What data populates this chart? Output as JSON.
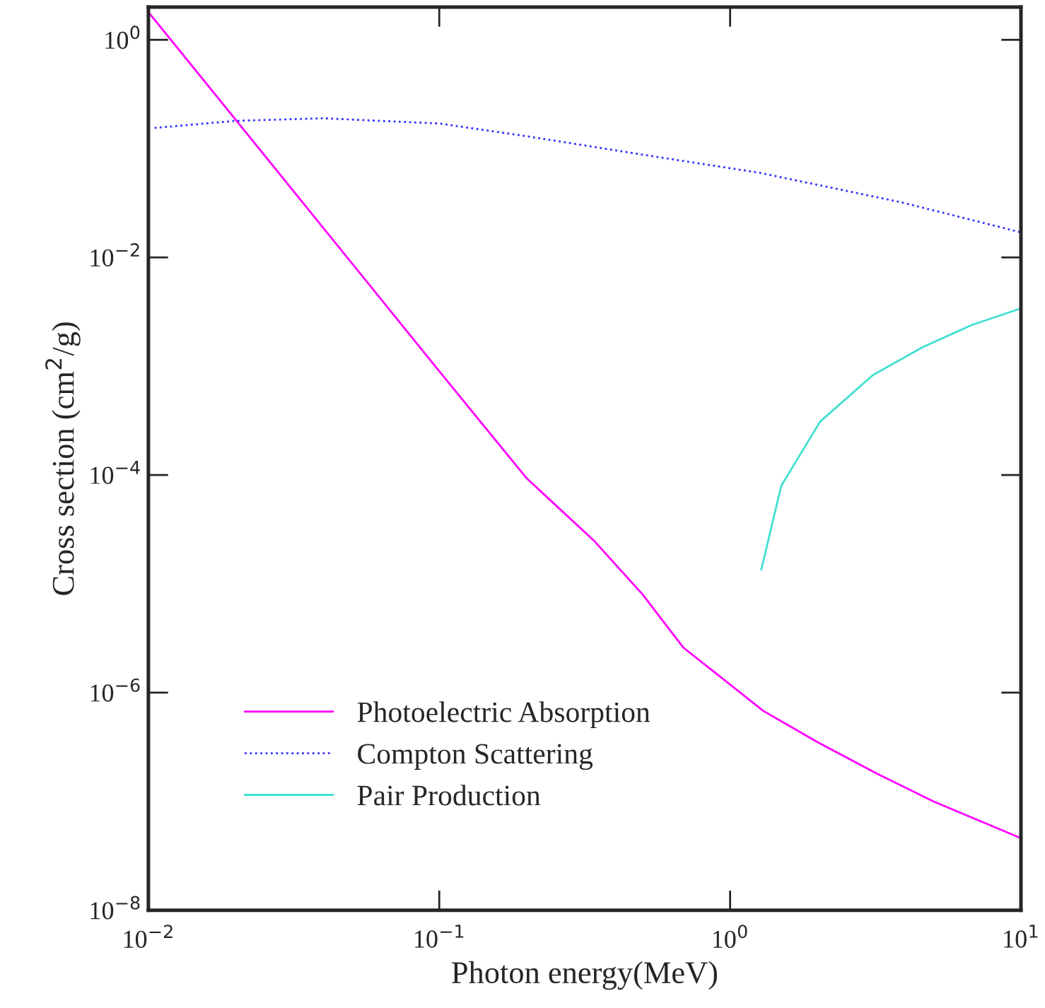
{
  "chart_data": {
    "type": "line",
    "xlabel": "Photon energy(MeV)",
    "ylabel": "Cross section (cm$^{2}$/g)",
    "log": "xy",
    "xlim": [
      0.01,
      10
    ],
    "ylim": [
      1e-08,
      2
    ],
    "xticks": [
      {
        "value": 0.01,
        "label": "10$^{−2}$"
      },
      {
        "value": 0.1,
        "label": "10$^{−1}$"
      },
      {
        "value": 1,
        "label": "10$^{0}$"
      },
      {
        "value": 10,
        "label": "10$^{1}$"
      }
    ],
    "yticks": [
      {
        "value": 1e-08,
        "label": "10$^{−8}$"
      },
      {
        "value": 1e-06,
        "label": "10$^{−6}$"
      },
      {
        "value": 0.0001,
        "label": "10$^{−4}$"
      },
      {
        "value": 0.01,
        "label": "10$^{−2}$"
      },
      {
        "value": 1,
        "label": "10$^{0}$"
      }
    ],
    "grid": false,
    "legend": "bottom left",
    "marker": "none",
    "series": [
      {
        "name": "Photoelectric Absorption",
        "color": "#ff00ff",
        "line_style": "solid",
        "x": [
          0.01,
          0.03,
          0.1,
          0.2,
          0.34,
          0.5,
          0.69,
          1.3,
          2,
          3.2,
          5,
          10
        ],
        "values": [
          1.8,
          0.048,
          0.0009,
          9.3e-05,
          2.5e-05,
          8e-06,
          2.6e-06,
          6.8e-07,
          3.5e-07,
          1.8e-07,
          1e-07,
          4.6e-08
        ]
      },
      {
        "name": "Compton Scattering",
        "color": "#3030ff",
        "line_style": "dotted",
        "x": [
          0.0105,
          0.02,
          0.04,
          0.1,
          0.2,
          0.5,
          1.26,
          3.9,
          10
        ],
        "values": [
          0.155,
          0.18,
          0.19,
          0.17,
          0.13,
          0.088,
          0.06,
          0.032,
          0.017
        ]
      },
      {
        "name": "Pair Production",
        "color": "#40e0d0",
        "line_style": "solid",
        "x": [
          1.28,
          1.5,
          2.04,
          3.1,
          4.6,
          6.8,
          10
        ],
        "values": [
          1.35e-05,
          8e-05,
          0.00031,
          0.00083,
          0.0015,
          0.0024,
          0.0034
        ]
      }
    ]
  }
}
